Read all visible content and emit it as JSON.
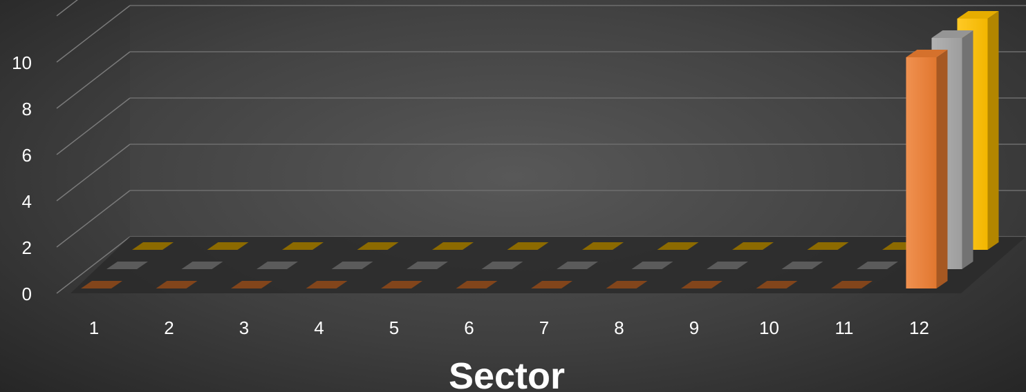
{
  "chart_data": {
    "type": "bar",
    "categories": [
      "1",
      "2",
      "3",
      "4",
      "5",
      "6",
      "7",
      "8",
      "9",
      "10",
      "11",
      "12"
    ],
    "series": [
      {
        "values": [
          0,
          0,
          0,
          0,
          0,
          0,
          0,
          0,
          0,
          0,
          0,
          10
        ]
      },
      {
        "values": [
          0,
          0,
          0,
          0,
          0,
          0,
          0,
          0,
          0,
          0,
          0,
          10
        ]
      },
      {
        "values": [
          0,
          0,
          0,
          0,
          0,
          0,
          0,
          0,
          0,
          0,
          0,
          10
        ]
      }
    ],
    "colors": [
      "#ED7D31",
      "#A5A5A5",
      "#FFC000"
    ],
    "title": "",
    "xlabel": "Sector",
    "ylabel": "",
    "ylim": [
      0,
      12
    ],
    "yticks": [
      0,
      2,
      4,
      6,
      8,
      10
    ],
    "grid": true,
    "legend": "none",
    "style": "3d-column"
  }
}
